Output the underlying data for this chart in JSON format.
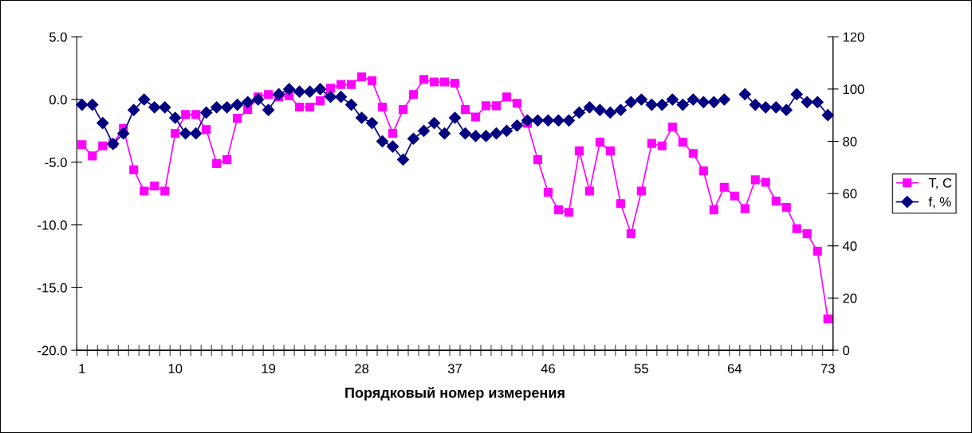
{
  "chart_data": {
    "type": "line",
    "xlabel": "Порядковый номер измерения",
    "categories": [
      "1",
      null,
      null,
      null,
      null,
      null,
      null,
      null,
      null,
      "10",
      null,
      null,
      null,
      null,
      null,
      null,
      null,
      null,
      "19",
      null,
      null,
      null,
      null,
      null,
      null,
      null,
      null,
      "28",
      null,
      null,
      null,
      null,
      null,
      null,
      null,
      null,
      "37",
      null,
      null,
      null,
      null,
      null,
      null,
      null,
      null,
      "46",
      null,
      null,
      null,
      null,
      null,
      null,
      null,
      null,
      "55",
      null,
      null,
      null,
      null,
      null,
      null,
      null,
      null,
      "64",
      null,
      null,
      null,
      null,
      null,
      null,
      null,
      null,
      "73"
    ],
    "series": [
      {
        "name": "T, C",
        "color": "#ff00ff",
        "marker": "square",
        "axis": "y",
        "values": [
          -3.6,
          -4.5,
          -3.7,
          -3.5,
          -2.3,
          -5.6,
          -7.3,
          -6.9,
          -7.3,
          -2.7,
          -1.2,
          -1.2,
          -2.4,
          -5.1,
          -4.8,
          -1.5,
          -0.8,
          0.2,
          0.4,
          0.2,
          0.3,
          -0.6,
          -0.6,
          -0.1,
          0.9,
          1.2,
          1.2,
          1.8,
          1.5,
          -0.6,
          -2.7,
          -0.8,
          0.4,
          1.6,
          1.4,
          1.4,
          1.3,
          -0.8,
          -1.4,
          -0.5,
          -0.5,
          0.2,
          -0.3,
          -1.9,
          -4.8,
          -7.4,
          -8.8,
          -9.0,
          -4.1,
          -7.3,
          -3.4,
          -4.1,
          -8.3,
          -10.7,
          -7.3,
          -3.5,
          -3.7,
          -2.2,
          -3.4,
          -4.3,
          -5.7,
          -8.8,
          -7.0,
          -7.7,
          -8.7,
          -6.4,
          -6.6,
          -8.1,
          -8.6,
          -10.3,
          -10.7,
          -12.1,
          -17.5
        ]
      },
      {
        "name": "f, %",
        "color": "#000080",
        "marker": "diamond",
        "axis": "y2",
        "values": [
          94,
          94,
          87,
          79,
          83,
          92,
          96,
          93,
          93,
          89,
          83,
          83,
          91,
          93,
          93,
          94,
          95,
          96,
          92,
          98,
          100,
          99,
          99,
          100,
          97,
          97,
          94,
          89,
          87,
          80,
          78,
          73,
          81,
          84,
          87,
          83,
          89,
          83,
          82,
          82,
          83,
          84,
          86,
          88,
          88,
          88,
          88,
          88,
          91,
          93,
          92,
          91,
          92,
          95,
          96,
          94,
          94,
          96,
          94,
          96,
          95,
          95,
          96,
          null,
          98,
          94,
          93,
          93,
          92,
          98,
          95,
          95,
          90
        ]
      }
    ],
    "ylim": [
      -20,
      5
    ],
    "yticks": [
      {
        "value": -20,
        "label": "-20.0"
      },
      {
        "value": -15,
        "label": "-15.0"
      },
      {
        "value": -10,
        "label": "-10.0"
      },
      {
        "value": -5,
        "label": "-5.0"
      },
      {
        "value": 0,
        "label": "0.0"
      },
      {
        "value": 5,
        "label": "5.0"
      }
    ],
    "y2lim": [
      0,
      120
    ],
    "y2ticks": [
      0,
      20,
      40,
      60,
      80,
      100,
      120
    ],
    "grid": false,
    "legend": "right",
    "line_style": "solid"
  }
}
